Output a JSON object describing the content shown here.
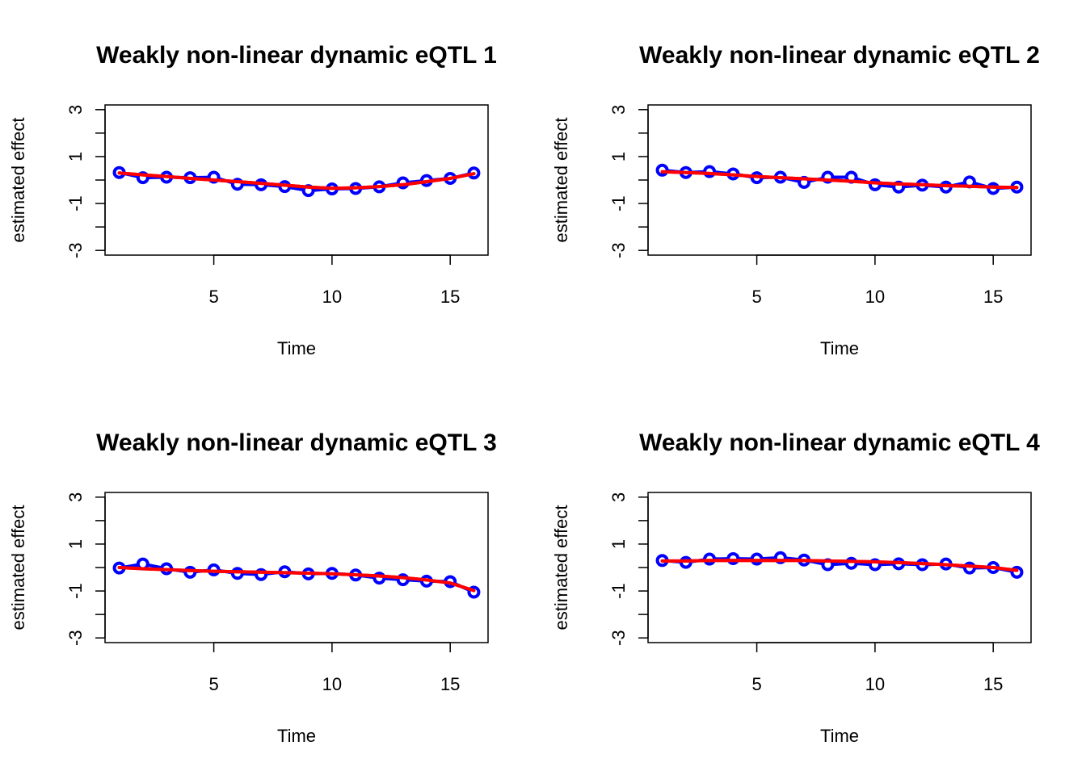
{
  "figure": {
    "layout": "2x2 grid"
  },
  "colors": {
    "observed": "#0000ff",
    "fitted": "#ff0000",
    "axis": "#000000",
    "background": "#ffffff"
  },
  "chart_data": [
    {
      "type": "line",
      "title": "Weakly non-linear dynamic eQTL 1",
      "xlabel": "Time",
      "ylabel": "estimated effect",
      "xlim": [
        0.4,
        16.6
      ],
      "ylim": [
        -3.2,
        3.2
      ],
      "xticks": [
        5,
        10,
        15
      ],
      "yticks": [
        -3,
        -2,
        -1,
        0,
        1,
        2,
        3
      ],
      "ytick_labels": [
        "-3",
        "",
        "-1",
        "",
        "1",
        "",
        "3"
      ],
      "grid": false,
      "x": [
        1,
        2,
        3,
        4,
        5,
        6,
        7,
        8,
        9,
        10,
        11,
        12,
        13,
        14,
        15,
        16
      ],
      "series": [
        {
          "style": "line+points",
          "color": "#0000ff",
          "values": [
            0.32,
            0.1,
            0.12,
            0.1,
            0.12,
            -0.18,
            -0.2,
            -0.28,
            -0.45,
            -0.38,
            -0.36,
            -0.29,
            -0.12,
            -0.02,
            0.07,
            0.3
          ]
        },
        {
          "style": "line",
          "color": "#ff0000",
          "values": [
            0.3,
            0.22,
            0.15,
            0.07,
            0.0,
            -0.07,
            -0.14,
            -0.22,
            -0.3,
            -0.35,
            -0.33,
            -0.28,
            -0.2,
            -0.07,
            0.07,
            0.27
          ]
        }
      ]
    },
    {
      "type": "line",
      "title": "Weakly non-linear dynamic eQTL 2",
      "xlabel": "Time",
      "ylabel": "estimated effect",
      "xlim": [
        0.4,
        16.6
      ],
      "ylim": [
        -3.2,
        3.2
      ],
      "xticks": [
        5,
        10,
        15
      ],
      "yticks": [
        -3,
        -2,
        -1,
        0,
        1,
        2,
        3
      ],
      "ytick_labels": [
        "-3",
        "",
        "-1",
        "",
        "1",
        "",
        "3"
      ],
      "grid": false,
      "x": [
        1,
        2,
        3,
        4,
        5,
        6,
        7,
        8,
        9,
        10,
        11,
        12,
        13,
        14,
        15,
        16
      ],
      "series": [
        {
          "style": "line+points",
          "color": "#0000ff",
          "values": [
            0.42,
            0.32,
            0.36,
            0.26,
            0.1,
            0.12,
            -0.1,
            0.12,
            0.12,
            -0.2,
            -0.3,
            -0.22,
            -0.3,
            -0.08,
            -0.36,
            -0.3
          ]
        },
        {
          "style": "line",
          "color": "#ff0000",
          "values": [
            0.35,
            0.32,
            0.28,
            0.22,
            0.15,
            0.1,
            0.05,
            0.0,
            -0.05,
            -0.12,
            -0.17,
            -0.2,
            -0.24,
            -0.27,
            -0.3,
            -0.32
          ]
        }
      ]
    },
    {
      "type": "line",
      "title": "Weakly non-linear dynamic eQTL 3",
      "xlabel": "Time",
      "ylabel": "estimated effect",
      "xlim": [
        0.4,
        16.6
      ],
      "ylim": [
        -3.2,
        3.2
      ],
      "xticks": [
        5,
        10,
        15
      ],
      "yticks": [
        -3,
        -2,
        -1,
        0,
        1,
        2,
        3
      ],
      "ytick_labels": [
        "-3",
        "",
        "-1",
        "",
        "1",
        "",
        "3"
      ],
      "grid": false,
      "x": [
        1,
        2,
        3,
        4,
        5,
        6,
        7,
        8,
        9,
        10,
        11,
        12,
        13,
        14,
        15,
        16
      ],
      "series": [
        {
          "style": "line+points",
          "color": "#0000ff",
          "values": [
            -0.02,
            0.15,
            -0.05,
            -0.2,
            -0.1,
            -0.25,
            -0.3,
            -0.18,
            -0.27,
            -0.25,
            -0.32,
            -0.45,
            -0.52,
            -0.58,
            -0.6,
            -1.05
          ]
        },
        {
          "style": "line",
          "color": "#ff0000",
          "values": [
            0.0,
            -0.05,
            -0.09,
            -0.13,
            -0.16,
            -0.18,
            -0.2,
            -0.22,
            -0.24,
            -0.27,
            -0.31,
            -0.36,
            -0.43,
            -0.53,
            -0.66,
            -0.98
          ]
        }
      ]
    },
    {
      "type": "line",
      "title": "Weakly non-linear dynamic eQTL 4",
      "xlabel": "Time",
      "ylabel": "estimated effect",
      "xlim": [
        0.4,
        16.6
      ],
      "ylim": [
        -3.2,
        3.2
      ],
      "xticks": [
        5,
        10,
        15
      ],
      "yticks": [
        -3,
        -2,
        -1,
        0,
        1,
        2,
        3
      ],
      "ytick_labels": [
        "-3",
        "",
        "-1",
        "",
        "1",
        "",
        "3"
      ],
      "grid": false,
      "x": [
        1,
        2,
        3,
        4,
        5,
        6,
        7,
        8,
        9,
        10,
        11,
        12,
        13,
        14,
        15,
        16
      ],
      "series": [
        {
          "style": "line+points",
          "color": "#0000ff",
          "values": [
            0.3,
            0.22,
            0.36,
            0.38,
            0.36,
            0.42,
            0.32,
            0.12,
            0.18,
            0.12,
            0.16,
            0.12,
            0.15,
            -0.02,
            0.0,
            -0.2
          ]
        },
        {
          "style": "line",
          "color": "#ff0000",
          "values": [
            0.28,
            0.28,
            0.3,
            0.3,
            0.3,
            0.3,
            0.3,
            0.28,
            0.26,
            0.24,
            0.21,
            0.17,
            0.12,
            0.06,
            0.0,
            -0.12
          ]
        }
      ]
    }
  ]
}
